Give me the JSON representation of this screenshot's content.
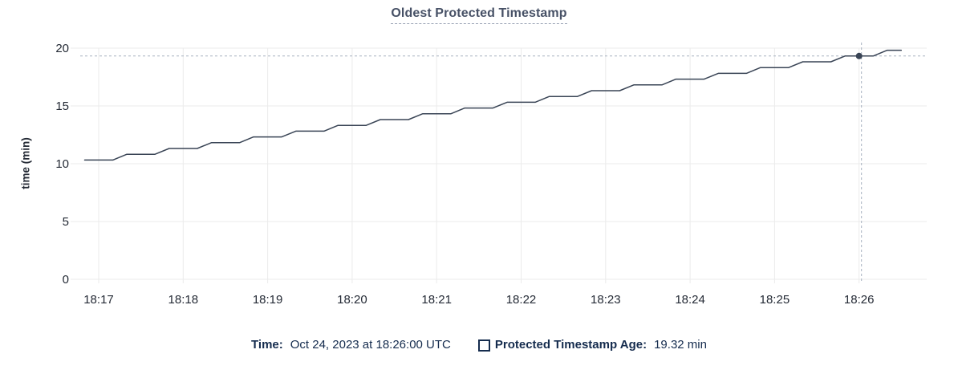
{
  "header": {
    "title": "Oldest Protected Timestamp"
  },
  "colors": {
    "line": "#394455",
    "crosshair": "#a7b1bf",
    "grid": "#ebebeb",
    "tick_text": "#242a35",
    "title_text": "#475166",
    "legend_text": "#152c4e",
    "background": "#ffffff"
  },
  "chart_data": {
    "type": "line",
    "title": "Oldest Protected Timestamp",
    "xlabel": "",
    "ylabel": "time (min)",
    "ylim": [
      0,
      20
    ],
    "yticks": [
      0,
      5,
      10,
      15,
      20
    ],
    "xticks": [
      "18:17",
      "18:18",
      "18:19",
      "18:20",
      "18:21",
      "18:22",
      "18:23",
      "18:24",
      "18:25",
      "18:26"
    ],
    "grid": true,
    "legend_position": "bottom",
    "series": [
      {
        "name": "Protected Timestamp Age",
        "unit": "min",
        "x": [
          "18:16:50",
          "18:17:00",
          "18:17:10",
          "18:17:20",
          "18:17:30",
          "18:17:40",
          "18:17:50",
          "18:18:00",
          "18:18:10",
          "18:18:20",
          "18:18:30",
          "18:18:40",
          "18:18:50",
          "18:19:00",
          "18:19:10",
          "18:19:20",
          "18:19:30",
          "18:19:40",
          "18:19:50",
          "18:20:00",
          "18:20:10",
          "18:20:20",
          "18:20:30",
          "18:20:40",
          "18:20:50",
          "18:21:00",
          "18:21:10",
          "18:21:20",
          "18:21:30",
          "18:21:40",
          "18:21:50",
          "18:22:00",
          "18:22:10",
          "18:22:20",
          "18:22:30",
          "18:22:40",
          "18:22:50",
          "18:23:00",
          "18:23:10",
          "18:23:20",
          "18:23:30",
          "18:23:40",
          "18:23:50",
          "18:24:00",
          "18:24:10",
          "18:24:20",
          "18:24:30",
          "18:24:40",
          "18:24:50",
          "18:25:00",
          "18:25:10",
          "18:25:20",
          "18:25:30",
          "18:25:40",
          "18:25:50",
          "18:26:00",
          "18:26:10",
          "18:26:20",
          "18:26:30"
        ],
        "values": [
          10.32,
          10.32,
          10.32,
          10.82,
          10.82,
          10.82,
          11.32,
          11.32,
          11.32,
          11.82,
          11.82,
          11.82,
          12.32,
          12.32,
          12.32,
          12.82,
          12.82,
          12.82,
          13.32,
          13.32,
          13.32,
          13.82,
          13.82,
          13.82,
          14.32,
          14.32,
          14.32,
          14.82,
          14.82,
          14.82,
          15.32,
          15.32,
          15.32,
          15.82,
          15.82,
          15.82,
          16.32,
          16.32,
          16.32,
          16.82,
          16.82,
          16.82,
          17.32,
          17.32,
          17.32,
          17.82,
          17.82,
          17.82,
          18.32,
          18.32,
          18.32,
          18.82,
          18.82,
          18.82,
          19.32,
          19.32,
          19.32,
          19.82,
          19.82
        ]
      }
    ],
    "hover_point": {
      "time": "18:26:00",
      "value": 19.32
    }
  },
  "legend": {
    "time_label": "Time:",
    "time_value": "Oct 24, 2023 at 18:26:00 UTC",
    "series_label": "Protected Timestamp Age:",
    "series_value": "19.32 min"
  }
}
